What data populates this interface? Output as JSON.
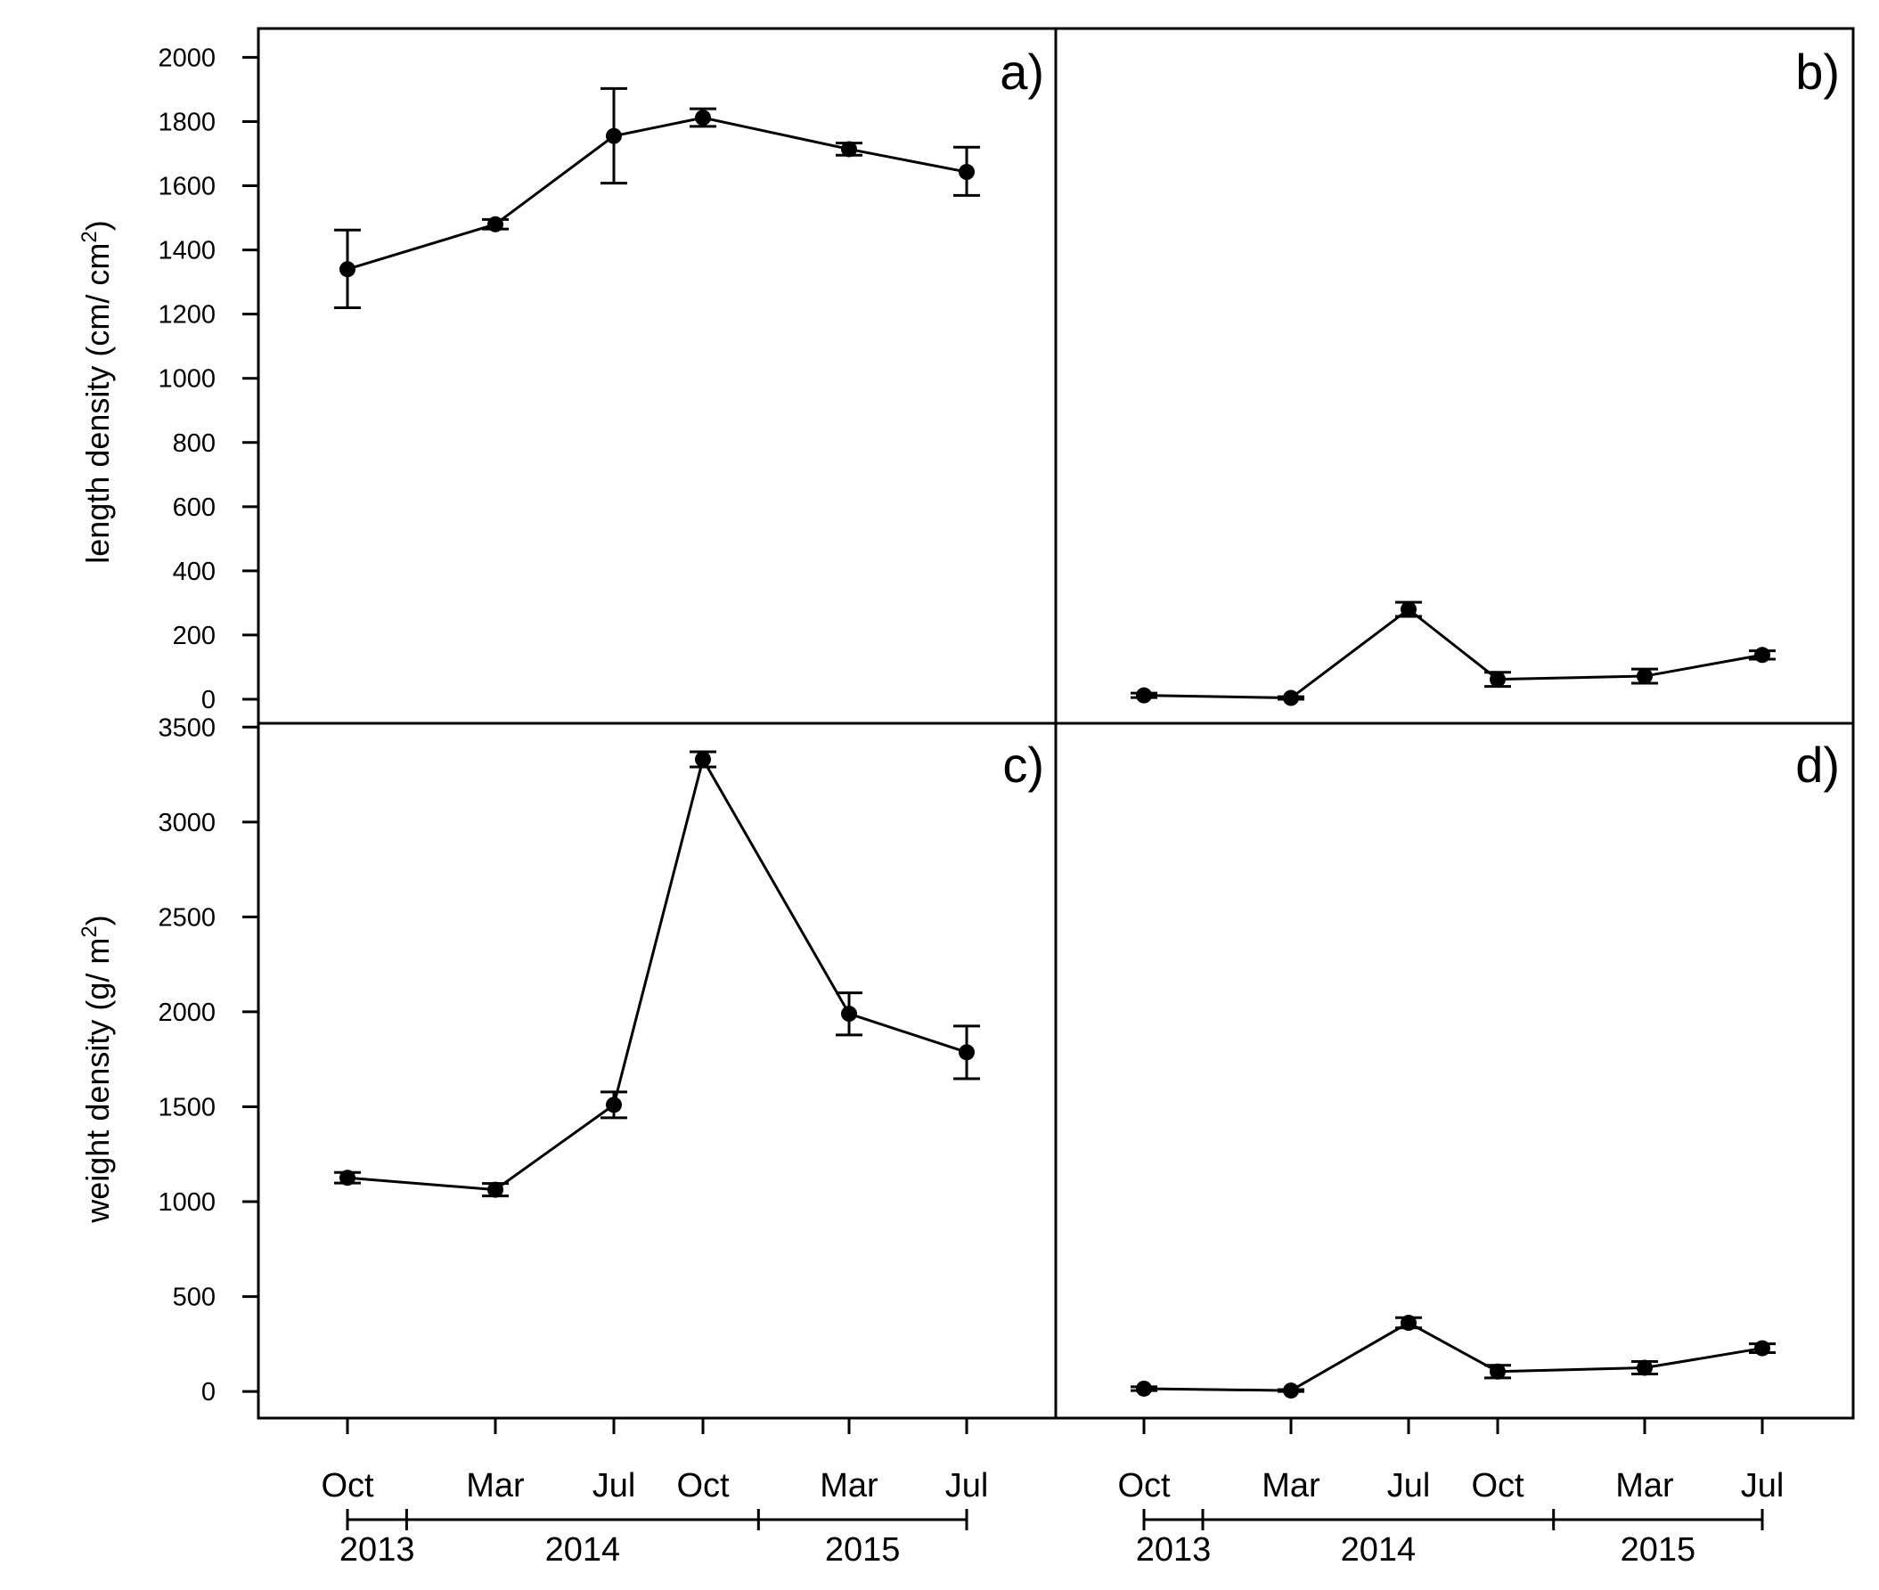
{
  "colors": {
    "line": "#000000",
    "background": "#ffffff"
  },
  "y_titles": {
    "top": {
      "main": "length density (cm/ cm",
      "sup": "2",
      "close": ")"
    },
    "bottom": {
      "main": "weight density (g/ m",
      "sup": "2",
      "close": ")"
    }
  },
  "chart_data": [
    {
      "type": "line",
      "panel": "a)",
      "xlabels": [
        "Oct",
        "Mar",
        "Jul",
        "Oct",
        "Mar",
        "Jul"
      ],
      "x": [
        "2013-10",
        "2014-03",
        "2014-07",
        "2014-10",
        "2015-03",
        "2015-07"
      ],
      "values": [
        1340,
        1480,
        1755,
        1812,
        1714,
        1643
      ],
      "err_low": [
        1220,
        1465,
        1608,
        1785,
        1695,
        1570
      ],
      "err_high": [
        1462,
        1495,
        1903,
        1840,
        1733,
        1720
      ],
      "ylabel": "length density (cm/ cm2)",
      "ylim": [
        -75,
        2090
      ],
      "yticks": [
        0,
        200,
        400,
        600,
        800,
        1000,
        1200,
        1400,
        1600,
        1800,
        2000
      ],
      "years": [
        "2013",
        "2014",
        "2015"
      ]
    },
    {
      "type": "line",
      "panel": "b)",
      "xlabels": [
        "Oct",
        "Mar",
        "Jul",
        "Oct",
        "Mar",
        "Jul"
      ],
      "x": [
        "2013-10",
        "2014-03",
        "2014-07",
        "2014-10",
        "2015-03",
        "2015-07"
      ],
      "values": [
        12,
        4,
        280,
        62,
        72,
        138
      ],
      "err_low": [
        5,
        0,
        258,
        40,
        50,
        125
      ],
      "err_high": [
        19,
        8,
        302,
        84,
        94,
        151
      ],
      "ylim": [
        -75,
        2090
      ],
      "years": [
        "2013",
        "2014",
        "2015"
      ]
    },
    {
      "type": "line",
      "panel": "c)",
      "xlabels": [
        "Oct",
        "Mar",
        "Jul",
        "Oct",
        "Mar",
        "Jul"
      ],
      "x": [
        "2013-10",
        "2014-03",
        "2014-07",
        "2014-10",
        "2015-03",
        "2015-07"
      ],
      "values": [
        1126,
        1063,
        1510,
        3330,
        1990,
        1787
      ],
      "err_low": [
        1098,
        1030,
        1442,
        3290,
        1878,
        1648
      ],
      "err_high": [
        1154,
        1096,
        1578,
        3370,
        2100,
        1925
      ],
      "ylabel": "weight density (g/ m2)",
      "ylim": [
        -140,
        3520
      ],
      "yticks": [
        0,
        500,
        1000,
        1500,
        2000,
        2500,
        3000,
        3500
      ],
      "years": [
        "2013",
        "2014",
        "2015"
      ]
    },
    {
      "type": "line",
      "panel": "d)",
      "xlabels": [
        "Oct",
        "Mar",
        "Jul",
        "Oct",
        "Mar",
        "Jul"
      ],
      "x": [
        "2013-10",
        "2014-03",
        "2014-07",
        "2014-10",
        "2015-03",
        "2015-07"
      ],
      "values": [
        15,
        5,
        362,
        105,
        125,
        228
      ],
      "err_low": [
        5,
        0,
        335,
        72,
        92,
        205
      ],
      "err_high": [
        25,
        10,
        389,
        138,
        158,
        251
      ],
      "ylim": [
        -140,
        3520
      ],
      "years": [
        "2013",
        "2014",
        "2015"
      ]
    }
  ]
}
